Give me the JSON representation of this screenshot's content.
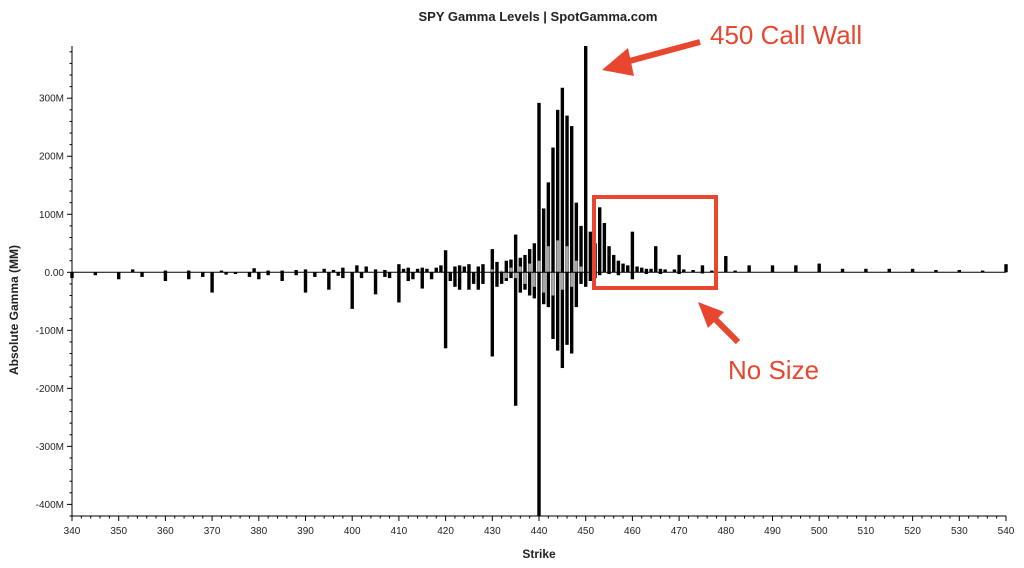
{
  "chart_data": {
    "type": "bar",
    "title": "SPY Gamma Levels | SpotGamma.com",
    "xlabel": "Strike",
    "ylabel": "Absolute Gamma (MM)",
    "xlim": [
      340,
      540
    ],
    "ylim": [
      -420,
      390
    ],
    "grid": false,
    "x_ticks": [
      "340",
      "350",
      "360",
      "370",
      "380",
      "390",
      "400",
      "410",
      "420",
      "430",
      "440",
      "450",
      "460",
      "470",
      "480",
      "490",
      "500",
      "510",
      "520",
      "530",
      "540"
    ],
    "y_ticks": [
      {
        "value": 300,
        "label": "300M"
      },
      {
        "value": 200,
        "label": "200M"
      },
      {
        "value": 100,
        "label": "100M"
      },
      {
        "value": 0,
        "label": "0.00"
      },
      {
        "value": -100,
        "label": "-100M"
      },
      {
        "value": -200,
        "label": "-200M"
      },
      {
        "value": -300,
        "label": "-300M"
      },
      {
        "value": -400,
        "label": "-400M"
      }
    ],
    "colors": {
      "primary": "#000000",
      "secondary": "#a6a6a6",
      "annotation": "#e8462e"
    },
    "series": [
      {
        "values": [
          [
            340,
            -10
          ],
          [
            345,
            -5
          ],
          [
            350,
            -12
          ],
          [
            355,
            -8
          ],
          [
            360,
            -15
          ],
          [
            365,
            -12
          ],
          [
            368,
            -8
          ],
          [
            370,
            -35
          ],
          [
            373,
            -4
          ],
          [
            375,
            -3
          ],
          [
            378,
            -8
          ],
          [
            380,
            -12
          ],
          [
            382,
            -5
          ],
          [
            385,
            -15
          ],
          [
            388,
            -5
          ],
          [
            390,
            -35
          ],
          [
            392,
            -8
          ],
          [
            395,
            -30
          ],
          [
            397,
            -6
          ],
          [
            398,
            -10
          ],
          [
            400,
            -63
          ],
          [
            402,
            -10
          ],
          [
            405,
            -38
          ],
          [
            407,
            -8
          ],
          [
            408,
            -10
          ],
          [
            410,
            -52
          ],
          [
            412,
            -15
          ],
          [
            413,
            -12
          ],
          [
            415,
            -28
          ],
          [
            417,
            -12
          ],
          [
            420,
            -131
          ],
          [
            421,
            -15
          ],
          [
            422,
            -25
          ],
          [
            423,
            -30
          ],
          [
            425,
            -30
          ],
          [
            426,
            -20
          ],
          [
            427,
            -30
          ],
          [
            428,
            -20
          ],
          [
            430,
            -145
          ],
          [
            431,
            -25
          ],
          [
            432,
            -20
          ],
          [
            433,
            -15
          ],
          [
            434,
            -10
          ],
          [
            435,
            -230
          ],
          [
            436,
            -35
          ],
          [
            437,
            -30
          ],
          [
            438,
            -40
          ],
          [
            439,
            -45
          ],
          [
            440,
            -420
          ],
          [
            441,
            -55
          ],
          [
            442,
            -60
          ],
          [
            443,
            -115
          ],
          [
            444,
            -135
          ],
          [
            445,
            -165
          ],
          [
            446,
            -125
          ],
          [
            447,
            -140
          ],
          [
            448,
            -60
          ],
          [
            449,
            -20
          ],
          [
            450,
            -25
          ],
          [
            451,
            -15
          ],
          [
            452,
            -10
          ],
          [
            453,
            -5
          ],
          [
            455,
            -3
          ],
          [
            457,
            -5
          ],
          [
            460,
            -12
          ],
          [
            463,
            -3
          ],
          [
            466,
            -3
          ],
          [
            470,
            -3
          ],
          [
            475,
            -2
          ]
        ]
      },
      {
        "values": [
          [
            353,
            5
          ],
          [
            360,
            3
          ],
          [
            365,
            3
          ],
          [
            372,
            3
          ],
          [
            379,
            7
          ],
          [
            382,
            3
          ],
          [
            385,
            3
          ],
          [
            388,
            4
          ],
          [
            390,
            5
          ],
          [
            394,
            6
          ],
          [
            396,
            4
          ],
          [
            398,
            8
          ],
          [
            401,
            12
          ],
          [
            403,
            10
          ],
          [
            405,
            5
          ],
          [
            407,
            4
          ],
          [
            410,
            14
          ],
          [
            411,
            6
          ],
          [
            412,
            8
          ],
          [
            414,
            6
          ],
          [
            415,
            8
          ],
          [
            416,
            6
          ],
          [
            418,
            8
          ],
          [
            419,
            12
          ],
          [
            420,
            38
          ],
          [
            422,
            10
          ],
          [
            423,
            12
          ],
          [
            424,
            10
          ],
          [
            425,
            14
          ],
          [
            427,
            10
          ],
          [
            428,
            14
          ],
          [
            430,
            40
          ],
          [
            431,
            18
          ],
          [
            433,
            20
          ],
          [
            434,
            22
          ],
          [
            435,
            65
          ],
          [
            436,
            25
          ],
          [
            437,
            30
          ],
          [
            438,
            40
          ],
          [
            439,
            50
          ],
          [
            440,
            292
          ],
          [
            441,
            110
          ],
          [
            442,
            155
          ],
          [
            443,
            215
          ],
          [
            444,
            280
          ],
          [
            445,
            318
          ],
          [
            446,
            270
          ],
          [
            447,
            252
          ],
          [
            448,
            120
          ],
          [
            449,
            80
          ],
          [
            450,
            390
          ],
          [
            451,
            70
          ],
          [
            452,
            50
          ],
          [
            453,
            112
          ],
          [
            454,
            85
          ],
          [
            455,
            45
          ],
          [
            456,
            30
          ],
          [
            457,
            20
          ],
          [
            458,
            15
          ],
          [
            459,
            12
          ],
          [
            460,
            70
          ],
          [
            461,
            10
          ],
          [
            462,
            8
          ],
          [
            463,
            6
          ],
          [
            464,
            6
          ],
          [
            465,
            45
          ],
          [
            466,
            6
          ],
          [
            467,
            5
          ],
          [
            469,
            5
          ],
          [
            470,
            30
          ],
          [
            471,
            5
          ],
          [
            473,
            4
          ],
          [
            475,
            12
          ],
          [
            477,
            3
          ],
          [
            480,
            28
          ],
          [
            482,
            3
          ],
          [
            485,
            12
          ],
          [
            490,
            12
          ],
          [
            495,
            12
          ],
          [
            500,
            15
          ],
          [
            505,
            6
          ],
          [
            510,
            6
          ],
          [
            515,
            6
          ],
          [
            520,
            6
          ],
          [
            525,
            4
          ],
          [
            530,
            4
          ],
          [
            535,
            3
          ],
          [
            540,
            14
          ]
        ]
      },
      {
        "values": [
          [
            430,
            5
          ],
          [
            432,
            3
          ],
          [
            433,
            -10
          ],
          [
            434,
            8
          ],
          [
            435,
            -10
          ],
          [
            436,
            10
          ],
          [
            437,
            -20
          ],
          [
            438,
            15
          ],
          [
            439,
            -25
          ],
          [
            440,
            20
          ],
          [
            441,
            -35
          ],
          [
            442,
            45
          ],
          [
            443,
            -40
          ],
          [
            444,
            55
          ],
          [
            445,
            -30
          ],
          [
            446,
            45
          ],
          [
            447,
            -25
          ],
          [
            448,
            20
          ],
          [
            449,
            10
          ]
        ]
      }
    ],
    "annotations": [
      {
        "text": "450 Call Wall"
      },
      {
        "text": "No Size"
      }
    ]
  }
}
